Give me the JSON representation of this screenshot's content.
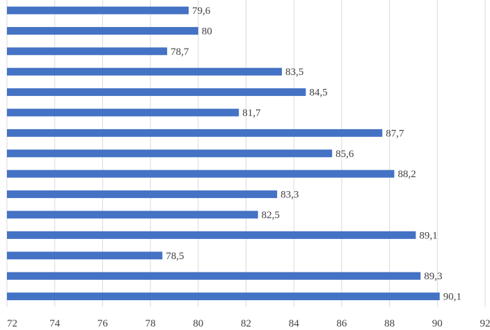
{
  "chart_data": {
    "type": "bar",
    "orientation": "horizontal",
    "title": "",
    "xlabel": "",
    "ylabel": "",
    "xlim": [
      72,
      92
    ],
    "xticks": [
      72,
      74,
      76,
      78,
      80,
      82,
      84,
      86,
      88,
      90,
      92
    ],
    "xtick_labels": [
      "72",
      "74",
      "76",
      "78",
      "80",
      "82",
      "84",
      "86",
      "88",
      "90",
      "92"
    ],
    "values": [
      79.6,
      80,
      78.7,
      83.5,
      84.5,
      81.7,
      87.7,
      85.6,
      88.2,
      83.3,
      82.5,
      89.1,
      78.5,
      89.3,
      90.1
    ],
    "value_labels": [
      "79,6",
      "80",
      "78,7",
      "83,5",
      "84,5",
      "81,7",
      "87,7",
      "85,6",
      "88,2",
      "83,3",
      "82,5",
      "89,1",
      "78,5",
      "89,3",
      "90,1"
    ],
    "grid": true,
    "legend": "none",
    "colors": {
      "bar": "#4472c4",
      "grid": "#d9d9d9",
      "text": "#404040"
    }
  }
}
